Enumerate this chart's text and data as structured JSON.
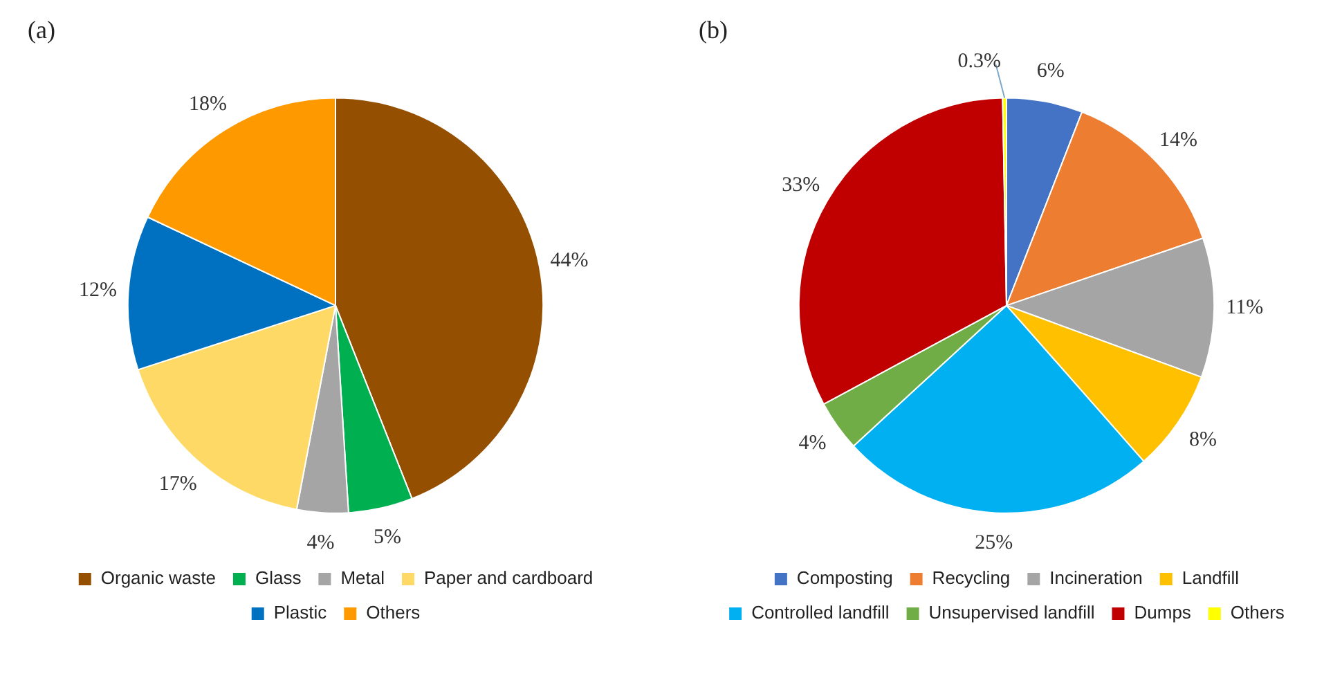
{
  "chart_data": [
    {
      "type": "pie",
      "title": "(a)",
      "categories": [
        "Organic waste",
        "Glass",
        "Metal",
        "Paper and cardboard",
        "Plastic",
        "Others"
      ],
      "values": [
        44,
        5,
        4,
        17,
        12,
        18
      ],
      "value_labels": [
        "44%",
        "5%",
        "4%",
        "17%",
        "12%",
        "18%"
      ],
      "colors": [
        "#954f00",
        "#00b050",
        "#a5a5a5",
        "#ffd966",
        "#0070c0",
        "#ff9900"
      ],
      "legend": "bottom"
    },
    {
      "type": "pie",
      "title": "(b)",
      "categories": [
        "Composting",
        "Recycling",
        "Incineration",
        "Landfill",
        "Controlled landfill",
        "Unsupervised landfill",
        "Dumps",
        "Others"
      ],
      "values": [
        6,
        14,
        11,
        8,
        25,
        4,
        33,
        0.3
      ],
      "value_labels": [
        "6%",
        "14%",
        "11%",
        "8%",
        "25%",
        "4%",
        "33%",
        "0.3%"
      ],
      "colors": [
        "#4472c4",
        "#ed7d31",
        "#a5a5a5",
        "#ffc000",
        "#00b0f0",
        "#70ad47",
        "#c00000",
        "#ffff00"
      ],
      "legend": "bottom"
    }
  ]
}
